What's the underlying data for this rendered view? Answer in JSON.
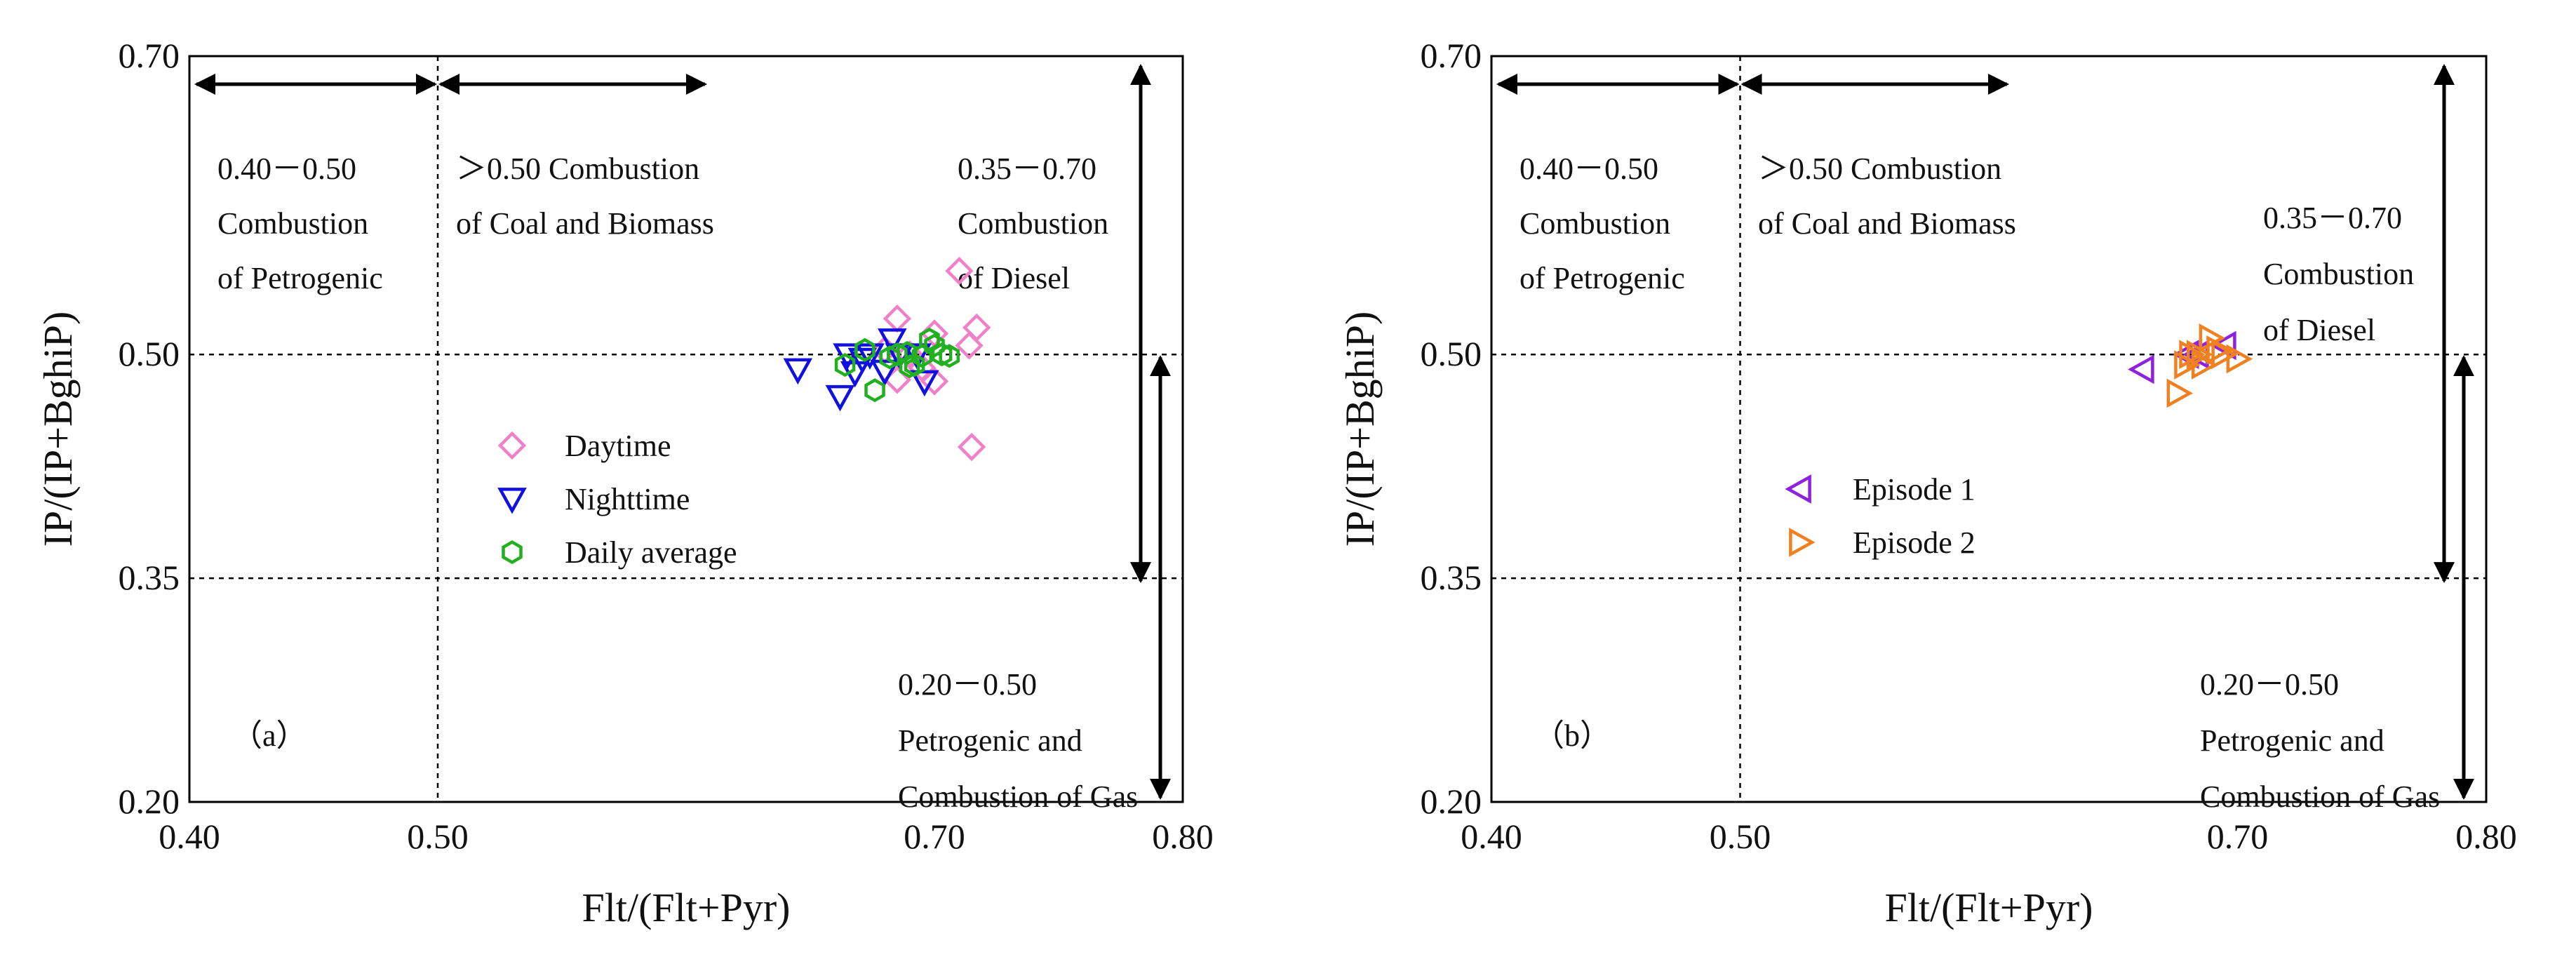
{
  "chart_data": [
    {
      "type": "scatter",
      "panel_label": "（a）",
      "xlabel": "Flt/(Flt+Pyr)",
      "ylabel": "IP/(IP+BghiP)",
      "xlim": [
        0.4,
        0.8
      ],
      "ylim": [
        0.2,
        0.7
      ],
      "xticks": [
        "0.40",
        "0.50",
        "0.70",
        "0.80"
      ],
      "yticks": [
        "0.70",
        "0.50",
        "0.35",
        "0.20"
      ],
      "legend_position": "center",
      "annotations": [
        {
          "id": "r1",
          "lines": [
            "0.40－0.50",
            "Combustion",
            "of Petrogenic"
          ]
        },
        {
          "id": "r2",
          "lines": [
            "＞0.50 Combustion",
            "of Coal and Biomass"
          ]
        },
        {
          "id": "r3",
          "lines": [
            "0.35－0.70",
            "Combustion",
            "of  Diesel"
          ]
        },
        {
          "id": "r4",
          "lines": [
            "0.20－0.50",
            "Petrogenic and",
            "Combustion of Gas"
          ]
        }
      ],
      "series": [
        {
          "name": "Daytime",
          "marker": "diamond",
          "color": "#f080c8",
          "points": [
            [
              0.71,
              0.556
            ],
            [
              0.717,
              0.518
            ],
            [
              0.714,
              0.506
            ],
            [
              0.7,
              0.514
            ],
            [
              0.685,
              0.524
            ],
            [
              0.68,
              0.503
            ],
            [
              0.69,
              0.5
            ],
            [
              0.695,
              0.491
            ],
            [
              0.7,
              0.482
            ],
            [
              0.685,
              0.483
            ],
            [
              0.715,
              0.438
            ]
          ]
        },
        {
          "name": "Nighttime",
          "marker": "triangle-down",
          "color": "#1010e0",
          "points": [
            [
              0.645,
              0.49
            ],
            [
              0.662,
              0.472
            ],
            [
              0.665,
              0.5
            ],
            [
              0.668,
              0.488
            ],
            [
              0.671,
              0.497
            ],
            [
              0.674,
              0.5
            ],
            [
              0.68,
              0.489
            ],
            [
              0.683,
              0.51
            ],
            [
              0.686,
              0.5
            ],
            [
              0.693,
              0.5
            ],
            [
              0.696,
              0.482
            ]
          ]
        },
        {
          "name": "Daily average",
          "marker": "hexagon",
          "color": "#20b020",
          "points": [
            [
              0.664,
              0.493
            ],
            [
              0.672,
              0.503
            ],
            [
              0.676,
              0.476
            ],
            [
              0.682,
              0.498
            ],
            [
              0.685,
              0.5
            ],
            [
              0.689,
              0.501
            ],
            [
              0.692,
              0.493
            ],
            [
              0.695,
              0.499
            ],
            [
              0.698,
              0.51
            ],
            [
              0.7,
              0.506
            ],
            [
              0.703,
              0.5
            ],
            [
              0.706,
              0.499
            ],
            [
              0.69,
              0.492
            ]
          ]
        }
      ]
    },
    {
      "type": "scatter",
      "panel_label": "（b）",
      "xlabel": "Flt/(Flt+Pyr)",
      "ylabel": "IP/(IP+BghiP)",
      "xlim": [
        0.4,
        0.8
      ],
      "ylim": [
        0.2,
        0.7
      ],
      "xticks": [
        "0.40",
        "0.50",
        "0.70",
        "0.80"
      ],
      "yticks": [
        "0.70",
        "0.50",
        "0.35",
        "0.20"
      ],
      "legend_position": "center-left",
      "annotations": [
        {
          "id": "r1",
          "lines": [
            "0.40－0.50",
            "Combustion",
            "of Petrogenic"
          ]
        },
        {
          "id": "r2",
          "lines": [
            "＞0.50 Combustion",
            "of Coal and Biomass"
          ]
        },
        {
          "id": "r3",
          "lines": [
            "0.35－0.70",
            "Combustion",
            "of Diesel"
          ]
        },
        {
          "id": "r4",
          "lines": [
            "0.20－0.50",
            "Petrogenic and",
            "Combustion of  Gas"
          ]
        }
      ],
      "series": [
        {
          "name": "Episode 1",
          "marker": "triangle-left",
          "color": "#9020e0",
          "points": [
            [
              0.662,
              0.49
            ],
            [
              0.68,
              0.5
            ],
            [
              0.684,
              0.5
            ],
            [
              0.695,
              0.506
            ]
          ]
        },
        {
          "name": "Episode 2",
          "marker": "triangle-right",
          "color": "#f08020",
          "points": [
            [
              0.676,
              0.474
            ],
            [
              0.679,
              0.493
            ],
            [
              0.681,
              0.5
            ],
            [
              0.684,
              0.5
            ],
            [
              0.686,
              0.493
            ],
            [
              0.689,
              0.511
            ],
            [
              0.692,
              0.503
            ],
            [
              0.694,
              0.5
            ],
            [
              0.7,
              0.497
            ]
          ]
        }
      ]
    }
  ]
}
